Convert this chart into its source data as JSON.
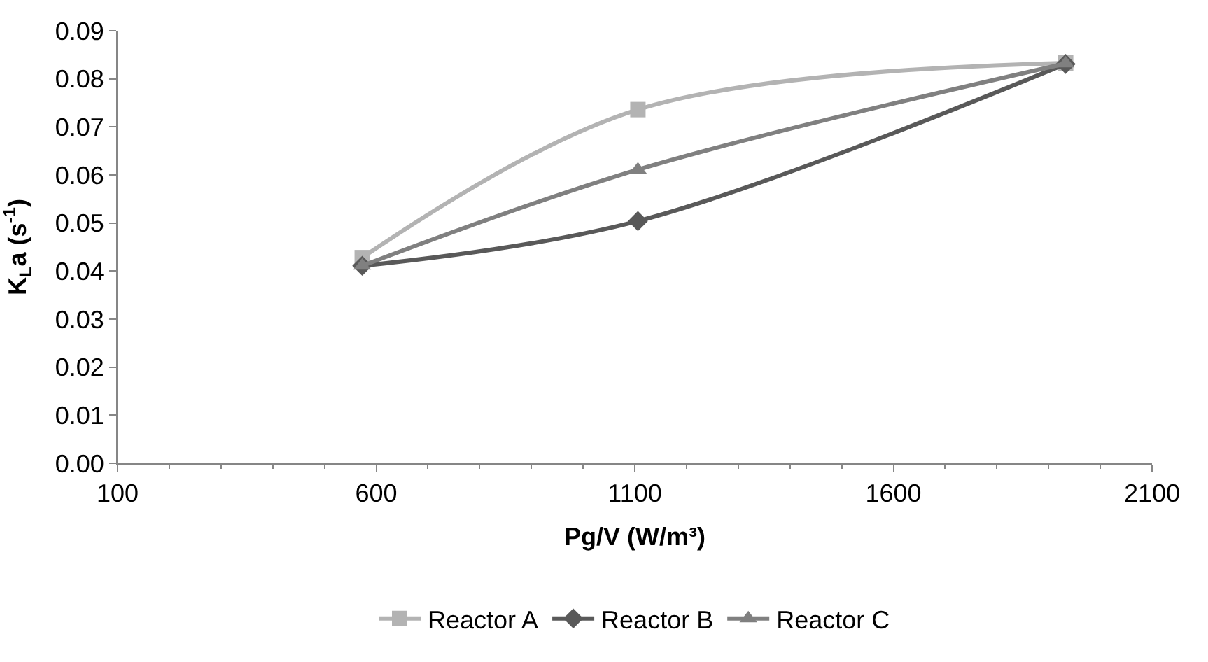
{
  "chart_data": {
    "type": "line",
    "xlabel": "Pg/V (W/m³)",
    "ylabel": "K$_{L}$a (s$^{-1}$)",
    "xlim": [
      100,
      2100
    ],
    "xticks": [
      100,
      600,
      1100,
      1600,
      2100
    ],
    "ylim": [
      0,
      0.09
    ],
    "yticks": [
      {
        "value": 0,
        "label": "0.00"
      },
      {
        "value": 0.01,
        "label": "0.01"
      },
      {
        "value": 0.02,
        "label": "0.02"
      },
      {
        "value": 0.03,
        "label": "0.03"
      },
      {
        "value": 0.04,
        "label": "0.04"
      },
      {
        "value": 0.05,
        "label": "0.05"
      },
      {
        "value": 0.06,
        "label": "0.06"
      },
      {
        "value": 0.07,
        "label": "0.07"
      },
      {
        "value": 0.08,
        "label": "0.08"
      },
      {
        "value": 0.09,
        "label": "0.09"
      }
    ],
    "legend": "bottom",
    "line_style": "solid",
    "x": [
      573,
      1106,
      1933
    ],
    "series": [
      {
        "name": "Reactor A",
        "color": "#b3b3b3",
        "marker": "square",
        "values": [
          0.0428,
          0.0736,
          0.0833
        ]
      },
      {
        "name": "Reactor B",
        "color": "#595959",
        "marker": "diamond",
        "values": [
          0.0411,
          0.0504,
          0.0831
        ]
      },
      {
        "name": "Reactor C",
        "color": "#808080",
        "marker": "triangle",
        "values": [
          0.0411,
          0.0611,
          0.0832
        ]
      }
    ]
  }
}
